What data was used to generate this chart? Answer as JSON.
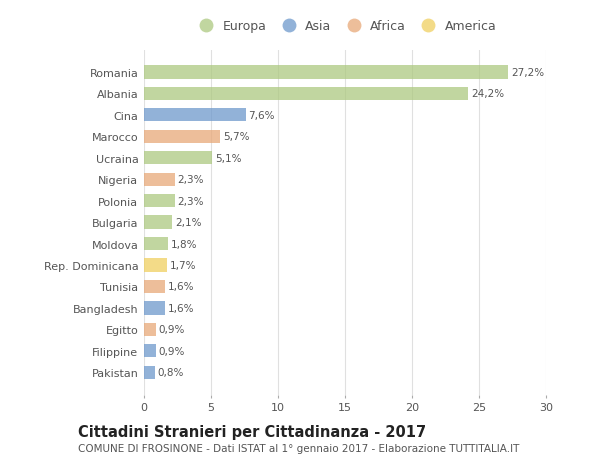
{
  "countries": [
    "Romania",
    "Albania",
    "Cina",
    "Marocco",
    "Ucraina",
    "Nigeria",
    "Polonia",
    "Bulgaria",
    "Moldova",
    "Rep. Dominicana",
    "Tunisia",
    "Bangladesh",
    "Egitto",
    "Filippine",
    "Pakistan"
  ],
  "values": [
    27.2,
    24.2,
    7.6,
    5.7,
    5.1,
    2.3,
    2.3,
    2.1,
    1.8,
    1.7,
    1.6,
    1.6,
    0.9,
    0.9,
    0.8
  ],
  "labels": [
    "27,2%",
    "24,2%",
    "7,6%",
    "5,7%",
    "5,1%",
    "2,3%",
    "2,3%",
    "2,1%",
    "1,8%",
    "1,7%",
    "1,6%",
    "1,6%",
    "0,9%",
    "0,9%",
    "0,8%"
  ],
  "continents": [
    "Europa",
    "Europa",
    "Asia",
    "Africa",
    "Europa",
    "Africa",
    "Europa",
    "Europa",
    "Europa",
    "America",
    "Africa",
    "Asia",
    "Africa",
    "Asia",
    "Asia"
  ],
  "colors": {
    "Europa": "#adc980",
    "Asia": "#6e99cc",
    "Africa": "#e8a878",
    "America": "#f0d060"
  },
  "xlim": [
    0,
    30
  ],
  "xticks": [
    0,
    5,
    10,
    15,
    20,
    25,
    30
  ],
  "title": "Cittadini Stranieri per Cittadinanza - 2017",
  "subtitle": "COMUNE DI FROSINONE - Dati ISTAT al 1° gennaio 2017 - Elaborazione TUTTITALIA.IT",
  "background_color": "#ffffff",
  "plot_bg_color": "#ffffff",
  "grid_color": "#e0e0e0",
  "bar_height": 0.62,
  "bar_alpha": 0.75,
  "title_fontsize": 10.5,
  "subtitle_fontsize": 7.5,
  "label_fontsize": 7.5,
  "ytick_fontsize": 8,
  "xtick_fontsize": 8,
  "legend_fontsize": 9
}
